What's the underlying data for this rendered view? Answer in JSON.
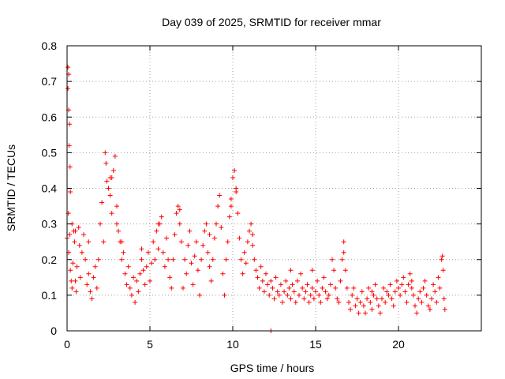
{
  "chart_data": {
    "type": "scatter",
    "title": "Day 039 of 2025, SRMTID for receiver mmar",
    "xlabel": "GPS time / hours",
    "ylabel": "SRMTID / TECUs",
    "xlim": [
      0,
      25
    ],
    "ylim": [
      0,
      0.8
    ],
    "xticks": [
      0,
      5,
      10,
      15,
      20
    ],
    "xtick_labels": [
      "0",
      "5",
      "10",
      "15",
      "20"
    ],
    "yticks": [
      0,
      0.1,
      0.2,
      0.3,
      0.4,
      0.5,
      0.6,
      0.7,
      0.8
    ],
    "ytick_labels": [
      "0",
      "0.1",
      "0.2",
      "0.3",
      "0.4",
      "0.5",
      "0.6",
      "0.7",
      "0.8"
    ],
    "grid": true,
    "marker": "plus",
    "color": "#ff0000",
    "series": [
      {
        "name": "SRMTID",
        "points": [
          [
            0.0,
            0.26
          ],
          [
            0.05,
            0.74
          ],
          [
            0.05,
            0.68
          ],
          [
            0.1,
            0.72
          ],
          [
            0.1,
            0.62
          ],
          [
            0.15,
            0.58
          ],
          [
            0.12,
            0.52
          ],
          [
            0.18,
            0.46
          ],
          [
            0.2,
            0.39
          ],
          [
            0.08,
            0.33
          ],
          [
            0.15,
            0.27
          ],
          [
            0.1,
            0.22
          ],
          [
            0.2,
            0.17
          ],
          [
            0.25,
            0.14
          ],
          [
            0.3,
            0.12
          ],
          [
            0.35,
            0.19
          ],
          [
            0.4,
            0.28
          ],
          [
            0.45,
            0.25
          ],
          [
            0.5,
            0.14
          ],
          [
            0.55,
            0.11
          ],
          [
            0.6,
            0.18
          ],
          [
            0.7,
            0.29
          ],
          [
            0.75,
            0.24
          ],
          [
            0.8,
            0.15
          ],
          [
            0.9,
            0.22
          ],
          [
            1.0,
            0.27
          ],
          [
            1.1,
            0.2
          ],
          [
            1.2,
            0.13
          ],
          [
            1.3,
            0.16
          ],
          [
            1.4,
            0.11
          ],
          [
            1.5,
            0.09
          ],
          [
            1.6,
            0.15
          ],
          [
            1.7,
            0.18
          ],
          [
            1.8,
            0.12
          ],
          [
            1.9,
            0.2
          ],
          [
            2.0,
            0.3
          ],
          [
            2.1,
            0.36
          ],
          [
            2.2,
            0.25
          ],
          [
            2.3,
            0.5
          ],
          [
            2.35,
            0.47
          ],
          [
            2.4,
            0.42
          ],
          [
            2.5,
            0.4
          ],
          [
            2.6,
            0.38
          ],
          [
            2.7,
            0.33
          ],
          [
            2.8,
            0.45
          ],
          [
            2.9,
            0.49
          ],
          [
            3.0,
            0.3
          ],
          [
            3.1,
            0.28
          ],
          [
            3.2,
            0.25
          ],
          [
            3.3,
            0.2
          ],
          [
            3.4,
            0.22
          ],
          [
            3.5,
            0.16
          ],
          [
            3.6,
            0.13
          ],
          [
            3.7,
            0.18
          ],
          [
            3.8,
            0.12
          ],
          [
            3.9,
            0.1
          ],
          [
            4.0,
            0.15
          ],
          [
            4.1,
            0.08
          ],
          [
            4.2,
            0.14
          ],
          [
            4.3,
            0.11
          ],
          [
            4.4,
            0.16
          ],
          [
            4.5,
            0.2
          ],
          [
            4.6,
            0.17
          ],
          [
            4.7,
            0.13
          ],
          [
            4.8,
            0.18
          ],
          [
            4.9,
            0.22
          ],
          [
            5.0,
            0.14
          ],
          [
            5.1,
            0.19
          ],
          [
            5.2,
            0.25
          ],
          [
            5.3,
            0.2
          ],
          [
            5.4,
            0.28
          ],
          [
            5.5,
            0.23
          ],
          [
            5.6,
            0.3
          ],
          [
            5.7,
            0.32
          ],
          [
            5.8,
            0.22
          ],
          [
            5.9,
            0.18
          ],
          [
            6.0,
            0.26
          ],
          [
            6.1,
            0.2
          ],
          [
            6.2,
            0.15
          ],
          [
            6.3,
            0.12
          ],
          [
            6.4,
            0.2
          ],
          [
            6.5,
            0.27
          ],
          [
            6.6,
            0.33
          ],
          [
            6.7,
            0.35
          ],
          [
            6.8,
            0.3
          ],
          [
            6.9,
            0.25
          ],
          [
            7.0,
            0.12
          ],
          [
            7.1,
            0.2
          ],
          [
            7.2,
            0.16
          ],
          [
            7.3,
            0.24
          ],
          [
            7.4,
            0.28
          ],
          [
            7.5,
            0.19
          ],
          [
            7.6,
            0.13
          ],
          [
            7.7,
            0.21
          ],
          [
            7.8,
            0.25
          ],
          [
            7.9,
            0.17
          ],
          [
            8.0,
            0.1
          ],
          [
            8.1,
            0.2
          ],
          [
            8.2,
            0.24
          ],
          [
            8.3,
            0.28
          ],
          [
            8.4,
            0.3
          ],
          [
            8.5,
            0.22
          ],
          [
            8.6,
            0.18
          ],
          [
            8.7,
            0.14
          ],
          [
            8.8,
            0.2
          ],
          [
            8.9,
            0.26
          ],
          [
            9.0,
            0.3
          ],
          [
            9.1,
            0.35
          ],
          [
            9.2,
            0.38
          ],
          [
            9.3,
            0.29
          ],
          [
            9.4,
            0.16
          ],
          [
            9.5,
            0.1
          ],
          [
            9.6,
            0.2
          ],
          [
            9.7,
            0.25
          ],
          [
            9.8,
            0.32
          ],
          [
            9.9,
            0.37
          ],
          [
            10.0,
            0.43
          ],
          [
            10.1,
            0.45
          ],
          [
            10.2,
            0.4
          ],
          [
            10.3,
            0.33
          ],
          [
            10.4,
            0.26
          ],
          [
            10.5,
            0.2
          ],
          [
            10.6,
            0.16
          ],
          [
            10.7,
            0.22
          ],
          [
            10.8,
            0.19
          ],
          [
            10.9,
            0.25
          ],
          [
            11.0,
            0.28
          ],
          [
            11.1,
            0.3
          ],
          [
            11.2,
            0.24
          ],
          [
            11.3,
            0.2
          ],
          [
            11.4,
            0.17
          ],
          [
            11.5,
            0.15
          ],
          [
            11.6,
            0.12
          ],
          [
            11.7,
            0.18
          ],
          [
            11.8,
            0.14
          ],
          [
            11.9,
            0.11
          ],
          [
            12.0,
            0.16
          ],
          [
            12.1,
            0.13
          ],
          [
            12.2,
            0.1
          ],
          [
            12.3,
            0.14
          ],
          [
            12.4,
            0.12
          ],
          [
            12.5,
            0.09
          ],
          [
            12.6,
            0.15
          ],
          [
            12.7,
            0.11
          ],
          [
            12.8,
            0.1
          ],
          [
            12.9,
            0.13
          ],
          [
            13.0,
            0.08
          ],
          [
            13.1,
            0.11
          ],
          [
            13.2,
            0.14
          ],
          [
            13.3,
            0.1
          ],
          [
            13.4,
            0.12
          ],
          [
            13.5,
            0.09
          ],
          [
            13.6,
            0.13
          ],
          [
            13.7,
            0.11
          ],
          [
            13.8,
            0.08
          ],
          [
            13.9,
            0.14
          ],
          [
            14.0,
            0.1
          ],
          [
            14.1,
            0.16
          ],
          [
            14.2,
            0.12
          ],
          [
            14.3,
            0.09
          ],
          [
            14.4,
            0.11
          ],
          [
            14.5,
            0.13
          ],
          [
            14.6,
            0.08
          ],
          [
            14.7,
            0.1
          ],
          [
            14.8,
            0.12
          ],
          [
            14.9,
            0.09
          ],
          [
            15.0,
            0.11
          ],
          [
            15.1,
            0.14
          ],
          [
            15.2,
            0.1
          ],
          [
            15.3,
            0.08
          ],
          [
            15.4,
            0.12
          ],
          [
            15.5,
            0.15
          ],
          [
            15.6,
            0.11
          ],
          [
            15.7,
            0.09
          ],
          [
            15.8,
            0.1
          ],
          [
            15.9,
            0.13
          ],
          [
            16.0,
            0.2
          ],
          [
            16.1,
            0.17
          ],
          [
            16.2,
            0.12
          ],
          [
            16.3,
            0.09
          ],
          [
            16.4,
            0.08
          ],
          [
            16.5,
            0.14
          ],
          [
            16.6,
            0.2
          ],
          [
            16.7,
            0.25
          ],
          [
            16.8,
            0.17
          ],
          [
            16.9,
            0.12
          ],
          [
            17.0,
            0.08
          ],
          [
            17.1,
            0.06
          ],
          [
            17.2,
            0.1
          ],
          [
            17.3,
            0.12
          ],
          [
            17.4,
            0.07
          ],
          [
            17.5,
            0.09
          ],
          [
            17.6,
            0.05
          ],
          [
            17.7,
            0.08
          ],
          [
            17.8,
            0.11
          ],
          [
            17.9,
            0.07
          ],
          [
            18.0,
            0.05
          ],
          [
            18.1,
            0.09
          ],
          [
            18.2,
            0.12
          ],
          [
            18.3,
            0.08
          ],
          [
            18.4,
            0.06
          ],
          [
            18.5,
            0.1
          ],
          [
            18.6,
            0.13
          ],
          [
            18.7,
            0.09
          ],
          [
            18.8,
            0.07
          ],
          [
            18.9,
            0.05
          ],
          [
            19.0,
            0.09
          ],
          [
            19.1,
            0.12
          ],
          [
            19.2,
            0.08
          ],
          [
            19.3,
            0.11
          ],
          [
            19.4,
            0.1
          ],
          [
            19.5,
            0.13
          ],
          [
            19.6,
            0.09
          ],
          [
            19.7,
            0.07
          ],
          [
            19.8,
            0.11
          ],
          [
            19.9,
            0.14
          ],
          [
            20.0,
            0.12
          ],
          [
            20.1,
            0.1
          ],
          [
            20.2,
            0.13
          ],
          [
            20.3,
            0.15
          ],
          [
            20.4,
            0.11
          ],
          [
            20.5,
            0.08
          ],
          [
            20.6,
            0.13
          ],
          [
            20.7,
            0.16
          ],
          [
            20.8,
            0.12
          ],
          [
            20.9,
            0.1
          ],
          [
            21.0,
            0.07
          ],
          [
            21.1,
            0.05
          ],
          [
            21.2,
            0.09
          ],
          [
            21.3,
            0.11
          ],
          [
            21.4,
            0.08
          ],
          [
            21.5,
            0.12
          ],
          [
            21.6,
            0.14
          ],
          [
            21.7,
            0.1
          ],
          [
            21.8,
            0.07
          ],
          [
            21.9,
            0.06
          ],
          [
            22.0,
            0.09
          ],
          [
            22.1,
            0.13
          ],
          [
            22.2,
            0.11
          ],
          [
            22.3,
            0.08
          ],
          [
            22.4,
            0.15
          ],
          [
            22.5,
            0.12
          ],
          [
            22.6,
            0.2
          ],
          [
            22.65,
            0.21
          ],
          [
            22.7,
            0.17
          ],
          [
            22.75,
            0.09
          ],
          [
            22.8,
            0.06
          ],
          [
            0.3,
            0.3
          ],
          [
            0.5,
            0.28
          ],
          [
            1.3,
            0.25
          ],
          [
            2.6,
            0.43
          ],
          [
            2.7,
            0.43
          ],
          [
            3.0,
            0.35
          ],
          [
            3.3,
            0.25
          ],
          [
            4.5,
            0.23
          ],
          [
            5.5,
            0.3
          ],
          [
            6.8,
            0.34
          ],
          [
            8.6,
            0.27
          ],
          [
            9.9,
            0.35
          ],
          [
            10.2,
            0.39
          ],
          [
            11.2,
            0.27
          ],
          [
            13.5,
            0.17
          ],
          [
            14.8,
            0.17
          ],
          [
            16.7,
            0.22
          ],
          [
            18.4,
            0.11
          ],
          [
            20.8,
            0.14
          ],
          [
            12.3,
            0.0
          ]
        ]
      }
    ]
  }
}
